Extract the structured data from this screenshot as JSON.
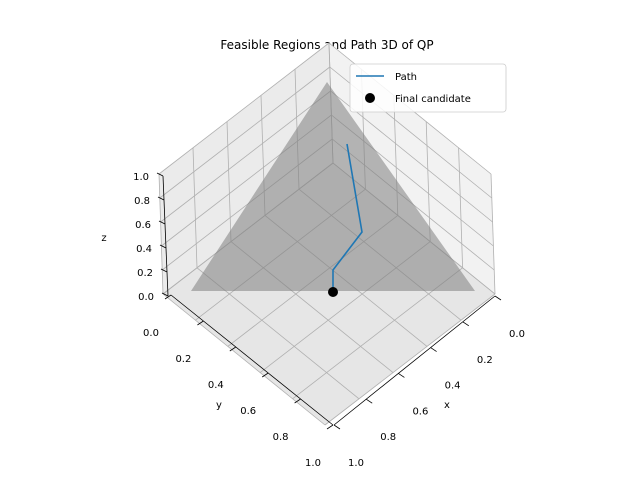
{
  "chart_data": {
    "type": "line",
    "projection": "3d",
    "title": "Feasible Regions and Path 3D of QP",
    "xlabel": "x",
    "ylabel": "y",
    "zlabel": "z",
    "xlim": [
      0,
      1
    ],
    "ylim": [
      0,
      1
    ],
    "zlim": [
      0,
      1
    ],
    "x_ticks": [
      "0.0",
      "0.2",
      "0.4",
      "0.6",
      "0.8",
      "1.0"
    ],
    "y_ticks": [
      "0.0",
      "0.2",
      "0.4",
      "0.6",
      "0.8",
      "1.0"
    ],
    "z_ticks": [
      "0.0",
      "0.2",
      "0.4",
      "0.6",
      "0.8",
      "1.0"
    ],
    "grid": true,
    "legend_position": "upper right",
    "feasible_region": {
      "vertices": [
        [
          1,
          0,
          0
        ],
        [
          0,
          1,
          0
        ],
        [
          0,
          0,
          1
        ]
      ],
      "color": "#808080"
    },
    "series": [
      {
        "name": "Path",
        "color": "#1f77b4",
        "points": [
          [
            0.34,
            0.32,
            0.34
          ],
          [
            0.36,
            0.38,
            0.26
          ],
          [
            0.42,
            0.42,
            0.16
          ],
          [
            0.48,
            0.48,
            0.04
          ],
          [
            0.5,
            0.5,
            0.0
          ]
        ]
      },
      {
        "name": "Final candidate",
        "color": "#000000",
        "points": [
          [
            0.5,
            0.5,
            0.0
          ]
        ]
      }
    ]
  }
}
